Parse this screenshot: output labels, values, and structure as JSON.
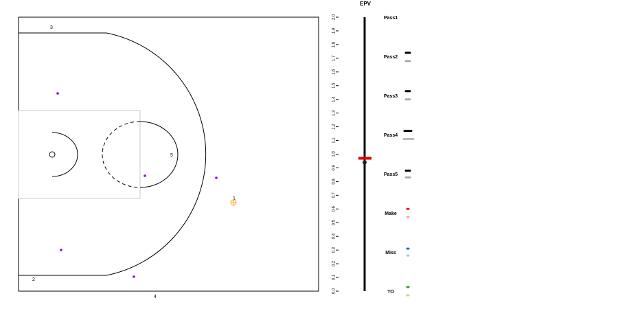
{
  "court": {
    "player_labels": [
      "1",
      "2",
      "3",
      "4",
      "5"
    ],
    "defenders": [
      {
        "x": 84,
        "y": 136
      },
      {
        "x": 211,
        "y": 256
      },
      {
        "x": 315,
        "y": 259
      },
      {
        "x": 89,
        "y": 364
      },
      {
        "x": 195,
        "y": 403
      }
    ],
    "ball_handler": {
      "x": 340,
      "y": 295
    },
    "colors": {
      "defender": "#8b00ff",
      "ball": "#f5a623",
      "lines": "#000000",
      "paint": "#c8c8c8"
    }
  },
  "chart_data": {
    "type": "scatter",
    "title": "EPV",
    "axis": {
      "min": 0.0,
      "max": 2.0,
      "step": 0.1
    },
    "ticks": [
      "0.0",
      "0.1",
      "0.2",
      "0.3",
      "0.4",
      "0.5",
      "0.6",
      "0.7",
      "0.8",
      "0.9",
      "1.0",
      "1.1",
      "1.2",
      "1.3",
      "1.4",
      "1.5",
      "1.6",
      "1.7",
      "1.8",
      "1.9",
      "2.0"
    ],
    "current_epv": 0.97,
    "current_point": 0.94,
    "options": [
      {
        "label": "Pass1",
        "value": null,
        "prob": null
      },
      {
        "label": "Pass2",
        "value": 1.74,
        "prob": 1.68,
        "value_color": "#000000",
        "prob_color": "#aaaaaa"
      },
      {
        "label": "Pass3",
        "value": 1.46,
        "prob": 1.4,
        "value_color": "#000000",
        "prob_color": "#aaaaaa"
      },
      {
        "label": "Pass4",
        "value": 1.17,
        "prob": 1.11,
        "value_color": "#000000",
        "prob_color": "#bbbbbb"
      },
      {
        "label": "Pass5",
        "value": 0.88,
        "prob": 0.83,
        "value_color": "#000000",
        "prob_color": "#aaaaaa"
      },
      {
        "label": "Make",
        "value": 0.6,
        "prob": 0.54,
        "value_color": "#e41a1c",
        "prob_color": "#f4a6a6"
      },
      {
        "label": "Miss",
        "value": 0.31,
        "prob": 0.26,
        "value_color": "#1f78b4",
        "prob_color": "#a6cee3"
      },
      {
        "label": "TO",
        "value": 0.03,
        "prob": -0.03,
        "value_color": "#33a02c",
        "prob_color": "#b2df8a"
      }
    ],
    "colors": {
      "axis_line": "#000000",
      "marker": "#e00000"
    }
  }
}
